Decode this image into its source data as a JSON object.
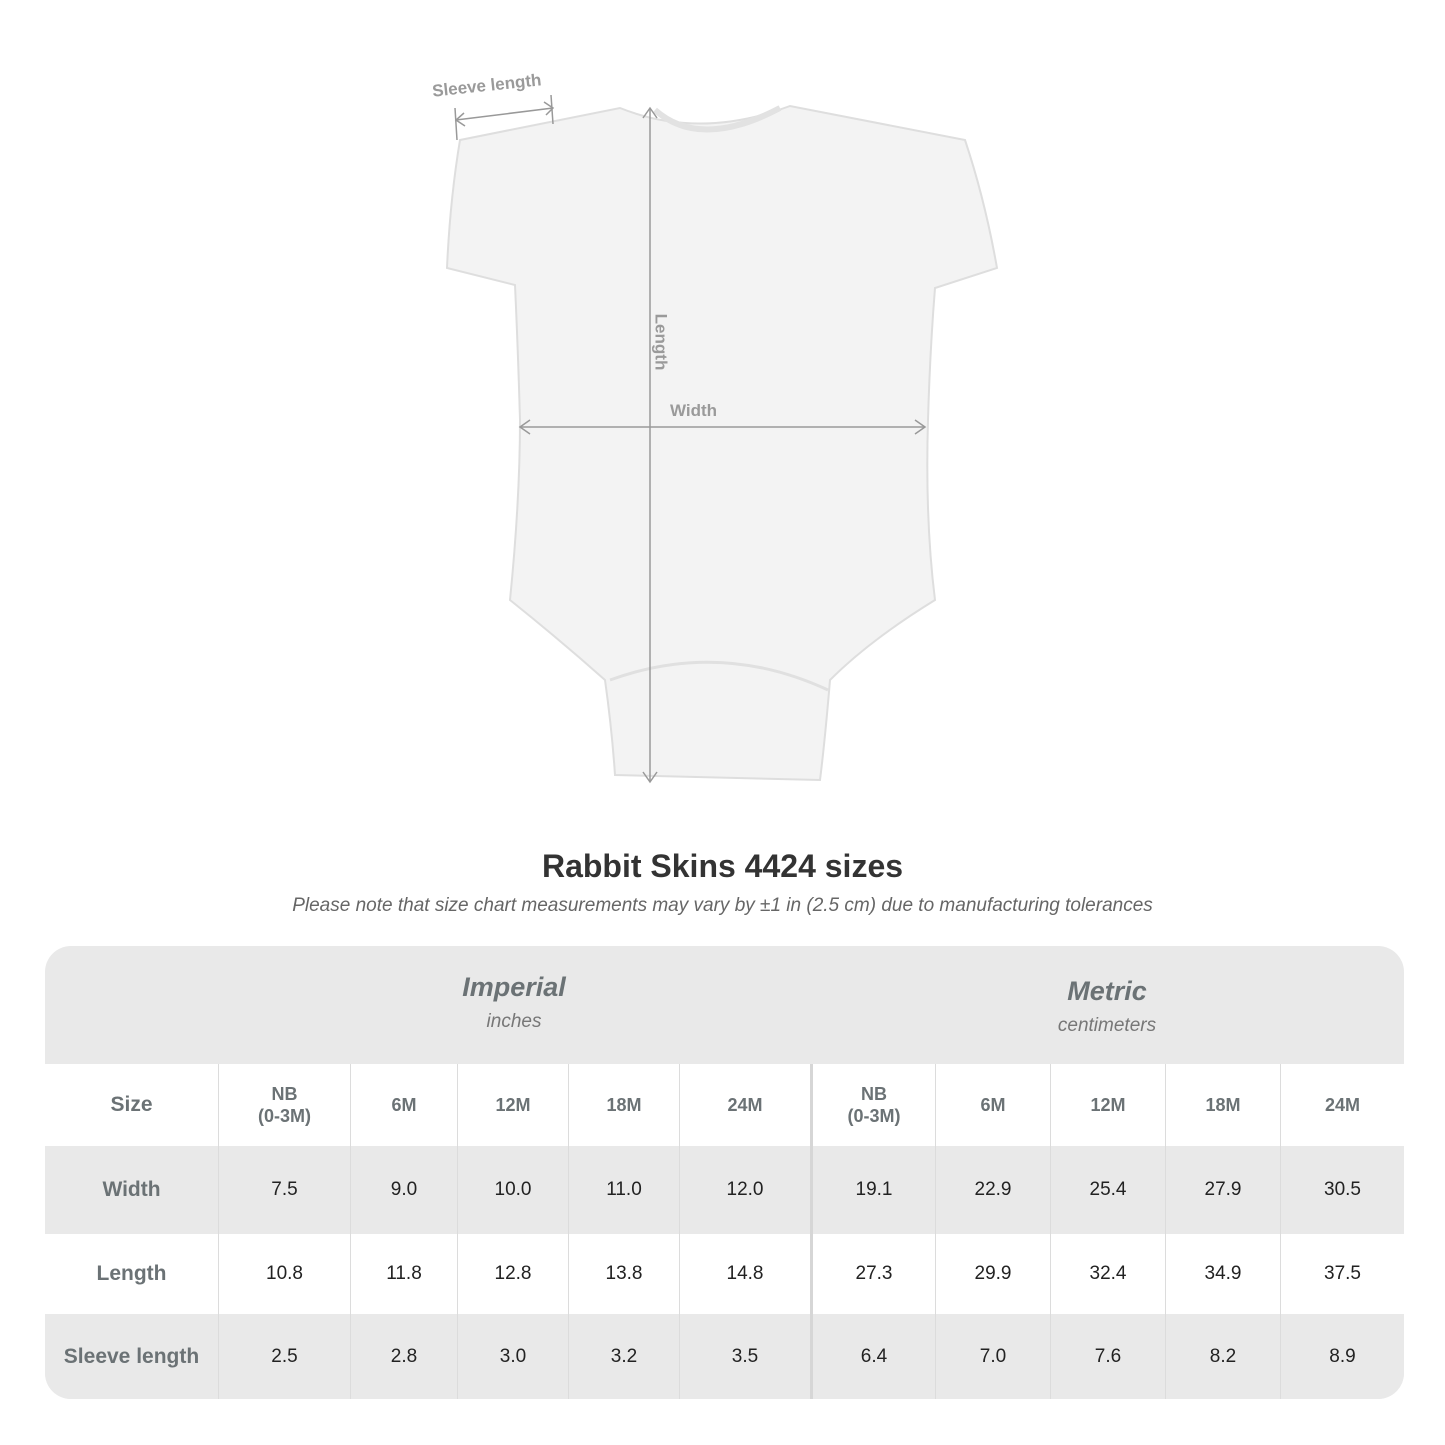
{
  "diagram": {
    "labels": {
      "sleeve": "Sleeve length",
      "length": "Length",
      "width": "Width"
    }
  },
  "title": "Rabbit Skins 4424 sizes",
  "note": "Please note that size chart measurements may vary by ±1 in (2.5 cm) due to manufacturing tolerances",
  "table": {
    "groups": [
      {
        "title": "Imperial",
        "unit": "inches"
      },
      {
        "title": "Metric",
        "unit": "centimeters"
      }
    ],
    "size_label": "Size",
    "sizes": [
      "NB\n(0-3M)",
      "6M",
      "12M",
      "18M",
      "24M",
      "NB\n(0-3M)",
      "6M",
      "12M",
      "18M",
      "24M"
    ],
    "rows": [
      {
        "label": "Width",
        "values": [
          "7.5",
          "9.0",
          "10.0",
          "11.0",
          "12.0",
          "19.1",
          "22.9",
          "25.4",
          "27.9",
          "30.5"
        ]
      },
      {
        "label": "Length",
        "values": [
          "10.8",
          "11.8",
          "12.8",
          "13.8",
          "14.8",
          "27.3",
          "29.9",
          "32.4",
          "34.9",
          "37.5"
        ]
      },
      {
        "label": "Sleeve length",
        "values": [
          "2.5",
          "2.8",
          "3.0",
          "3.2",
          "3.5",
          "6.4",
          "7.0",
          "7.6",
          "8.2",
          "8.9"
        ]
      }
    ]
  }
}
